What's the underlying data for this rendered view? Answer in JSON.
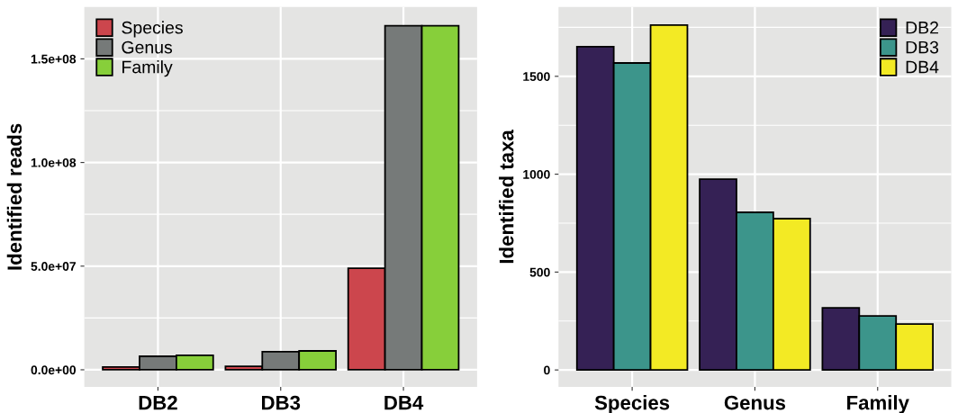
{
  "chart_data": [
    {
      "type": "bar",
      "ylabel": "Identified reads",
      "categories": [
        "DB2",
        "DB3",
        "DB4"
      ],
      "series": [
        {
          "name": "Species",
          "color": "#cc464d",
          "values": [
            1300000,
            1700000,
            49000000
          ]
        },
        {
          "name": "Genus",
          "color": "#767a79",
          "values": [
            6500000,
            8700000,
            166000000
          ]
        },
        {
          "name": "Family",
          "color": "#87cf3a",
          "values": [
            7000000,
            9100000,
            166000000
          ]
        }
      ],
      "ylim": [
        -8300000,
        175000000
      ],
      "yticks": [
        {
          "value": 0,
          "label": "0.0e+00"
        },
        {
          "value": 50000000,
          "label": "5.0e+07"
        },
        {
          "value": 100000000,
          "label": "1.0e+08"
        },
        {
          "value": 150000000,
          "label": "1.5e+08"
        }
      ],
      "grid": true,
      "legend": "top left"
    },
    {
      "type": "bar",
      "ylabel": "Identified taxa",
      "categories": [
        "Species",
        "Genus",
        "Family"
      ],
      "series": [
        {
          "name": "DB2",
          "color": "#352155",
          "values": [
            1651,
            975,
            317
          ]
        },
        {
          "name": "DB3",
          "color": "#3c958b",
          "values": [
            1568,
            805,
            276
          ]
        },
        {
          "name": "DB4",
          "color": "#f3ea24",
          "values": [
            1762,
            773,
            235
          ]
        }
      ],
      "ylim": [
        -87,
        1854
      ],
      "yticks": [
        0,
        500,
        1000,
        1500
      ],
      "grid": true,
      "legend": "top right"
    }
  ]
}
